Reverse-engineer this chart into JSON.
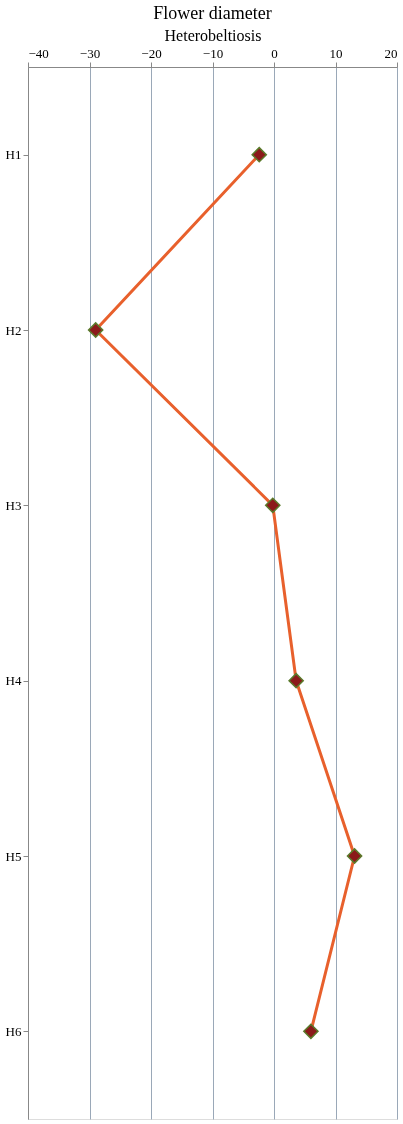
{
  "chart_data": {
    "type": "line",
    "orientation": "horizontal",
    "title": "Flower diameter",
    "xlabel": "Heterobeltiosis",
    "categories": [
      "H1",
      "H2",
      "H3",
      "H4",
      "H5",
      "H6"
    ],
    "series": [
      {
        "color": "#e8602c",
        "values": [
          -2.4,
          -29,
          -0.2,
          3.6,
          13.1,
          6
        ]
      }
    ],
    "xlim": [
      -40,
      20
    ],
    "xticks": [
      -40,
      -30,
      -20,
      -10,
      0,
      10,
      20
    ],
    "grid": "x",
    "marker": "diamond",
    "line_style": "solid"
  }
}
